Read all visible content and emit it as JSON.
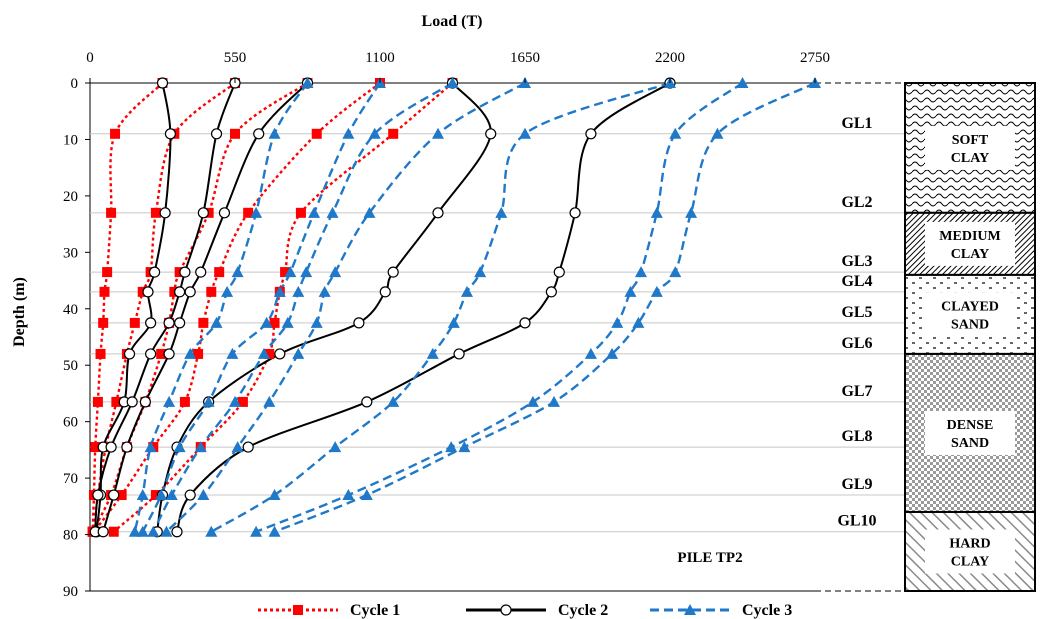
{
  "chart_data": {
    "type": "line",
    "title": "",
    "xlabel": "Load (T)",
    "ylabel": "Depth (m)",
    "xlim": [
      0,
      2750
    ],
    "ylim": [
      0,
      90
    ],
    "y_inverted": true,
    "x_axis_position": "top",
    "xticks": [
      "0",
      "550",
      "1100",
      "1650",
      "2200",
      "2750"
    ],
    "yticks": [
      "0",
      "10",
      "20",
      "30",
      "40",
      "50",
      "60",
      "70",
      "80",
      "90"
    ],
    "grid": false,
    "legend_position": "bottom",
    "annotation": "PILE TP2",
    "gauge_levels": [
      {
        "label": "GL1",
        "depth": 9
      },
      {
        "label": "GL2",
        "depth": 23
      },
      {
        "label": "GL3",
        "depth": 33.5
      },
      {
        "label": "GL4",
        "depth": 37
      },
      {
        "label": "GL5",
        "depth": 42.5
      },
      {
        "label": "GL6",
        "depth": 48
      },
      {
        "label": "GL7",
        "depth": 56.5
      },
      {
        "label": "GL8",
        "depth": 64.5
      },
      {
        "label": "GL9",
        "depth": 73
      },
      {
        "label": "GL10",
        "depth": 79.5
      }
    ],
    "soil_layers": [
      {
        "name": "SOFT CLAY",
        "top": 0,
        "bottom": 23,
        "pattern": "wavy"
      },
      {
        "name": "MEDIUM CLAY",
        "top": 23,
        "bottom": 34,
        "pattern": "hatch"
      },
      {
        "name": "CLAYED SAND",
        "top": 34,
        "bottom": 48,
        "pattern": "dashes"
      },
      {
        "name": "DENSE SAND",
        "top": 48,
        "bottom": 76,
        "pattern": "checker"
      },
      {
        "name": "HARD CLAY",
        "top": 76,
        "bottom": 90,
        "pattern": "diagonal"
      }
    ],
    "depths": [
      0,
      9,
      23,
      33.5,
      37,
      42.5,
      48,
      56.5,
      64.5,
      73,
      79.5
    ],
    "series": [
      {
        "name": "Cycle 1",
        "color": "#ff0000",
        "marker": "square",
        "line_style": "dotted",
        "curves": [
          [
            275,
            95,
            80,
            65,
            55,
            50,
            40,
            30,
            20,
            15,
            10
          ],
          [
            550,
            320,
            250,
            230,
            200,
            170,
            140,
            100,
            60,
            30,
            15
          ],
          [
            825,
            550,
            450,
            340,
            320,
            300,
            270,
            210,
            140,
            80,
            10
          ],
          [
            1100,
            860,
            600,
            490,
            460,
            430,
            410,
            360,
            240,
            120,
            15
          ],
          [
            1375,
            1150,
            800,
            740,
            720,
            700,
            680,
            580,
            420,
            250,
            90
          ]
        ]
      },
      {
        "name": "Cycle 2",
        "color": "#000000",
        "marker": "circle",
        "line_style": "solid",
        "curves": [
          [
            275,
            305,
            285,
            245,
            220,
            230,
            150,
            130,
            50,
            40,
            25
          ],
          [
            550,
            480,
            430,
            360,
            340,
            300,
            230,
            160,
            80,
            30,
            20
          ],
          [
            825,
            640,
            510,
            420,
            380,
            340,
            300,
            210,
            140,
            90,
            50
          ],
          [
            1375,
            1520,
            1320,
            1150,
            1120,
            1020,
            720,
            450,
            330,
            275,
            255
          ],
          [
            2200,
            1900,
            1840,
            1780,
            1750,
            1650,
            1400,
            1050,
            600,
            380,
            330
          ]
        ]
      },
      {
        "name": "Cycle 3",
        "color": "#1f78c8",
        "marker": "triangle",
        "line_style": "dashed",
        "curves": [
          [
            825,
            700,
            630,
            560,
            520,
            480,
            380,
            300,
            230,
            200,
            170
          ],
          [
            1100,
            980,
            850,
            760,
            720,
            670,
            540,
            450,
            340,
            270,
            200
          ],
          [
            1375,
            1080,
            920,
            820,
            790,
            750,
            660,
            550,
            420,
            310,
            240
          ],
          [
            1650,
            1320,
            1060,
            930,
            890,
            860,
            790,
            680,
            560,
            430,
            290
          ],
          [
            2200,
            1650,
            1560,
            1480,
            1430,
            1380,
            1300,
            1150,
            930,
            700,
            460
          ],
          [
            2475,
            2220,
            2150,
            2090,
            2050,
            2000,
            1900,
            1680,
            1370,
            980,
            630
          ],
          [
            2750,
            2380,
            2280,
            2220,
            2150,
            2080,
            1980,
            1760,
            1420,
            1050,
            700
          ]
        ]
      }
    ]
  }
}
